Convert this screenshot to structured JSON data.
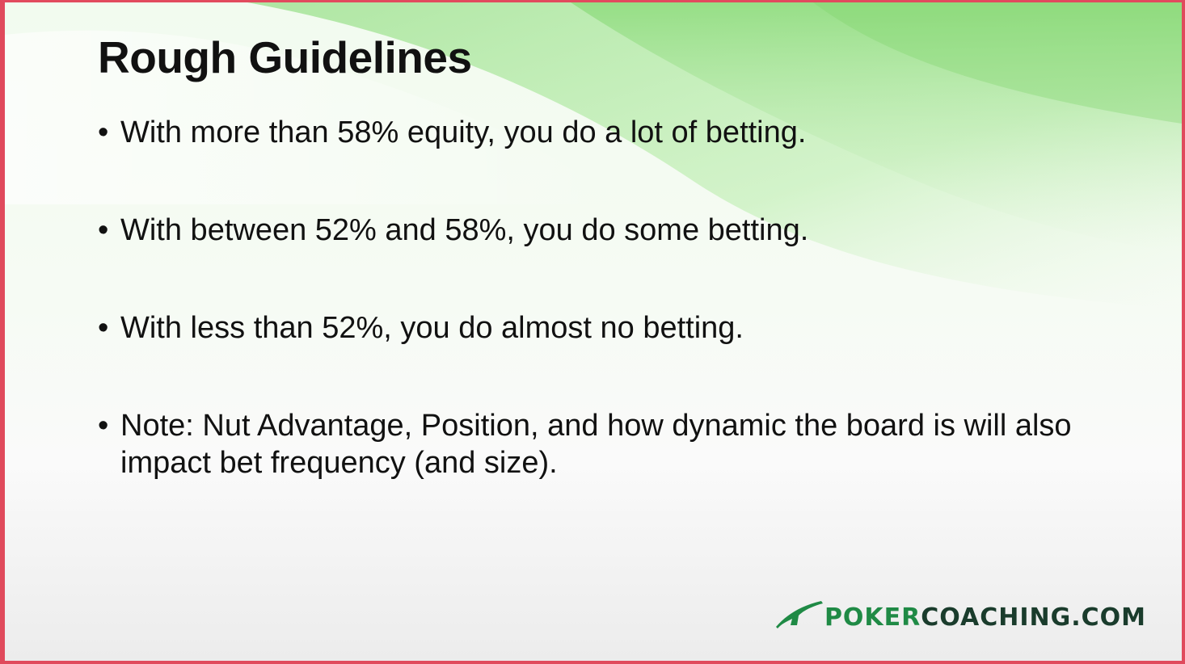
{
  "slide": {
    "title": "Rough Guidelines",
    "bullets": [
      "With more than 58% equity, you do a lot of betting.",
      "With between 52% and 58%, you do some betting.",
      "With less than 52%, you do almost no betting.",
      "Note: Nut Advantage, Position, and how dynamic the board is will also impact bet frequency (and size)."
    ],
    "bullet_glyph": "•"
  },
  "logo": {
    "part1": "POKER",
    "part2": "COACHING.COM",
    "icon": "swoosh-icon"
  },
  "colors": {
    "frame_border": "#e04a5c",
    "accent_green": "#8bd97a",
    "logo_green": "#1f8a45",
    "logo_dark": "#1a3c2c",
    "text": "#111111"
  }
}
